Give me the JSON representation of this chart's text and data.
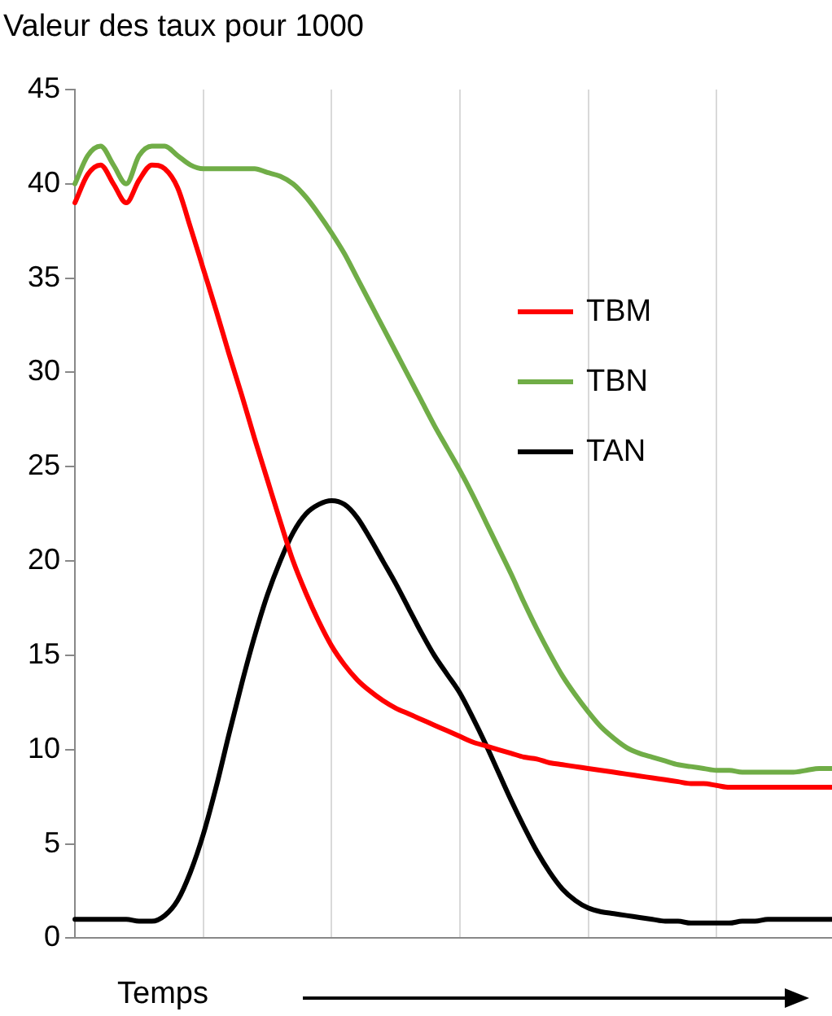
{
  "chart_data": {
    "type": "line",
    "ylabel": "Valeur des taux pour 1000",
    "xlabel": "Temps",
    "categories": [
      null,
      null,
      null,
      null,
      null,
      null,
      null,
      null,
      null,
      null,
      null,
      null,
      null,
      null,
      null,
      null,
      null,
      null,
      null,
      null,
      null,
      null,
      null,
      null,
      null,
      null,
      null,
      null,
      null,
      null,
      null,
      null,
      null,
      null,
      null,
      null,
      null,
      null,
      null,
      null,
      null,
      null,
      null,
      null,
      null,
      null,
      null,
      null,
      null,
      null,
      null,
      null,
      null,
      null,
      null,
      null,
      null,
      null,
      null,
      null
    ],
    "series": [
      {
        "name": "TBM",
        "color": "#ff0000",
        "values": [
          39,
          40.5,
          41,
          40,
          39,
          40.2,
          41,
          40.8,
          39.8,
          37.7,
          35.5,
          33.3,
          31,
          28.8,
          26.5,
          24.3,
          22.1,
          20,
          18.3,
          16.8,
          15.5,
          14.5,
          13.7,
          13.1,
          12.6,
          12.2,
          11.9,
          11.6,
          11.3,
          11,
          10.7,
          10.4,
          10.2,
          10,
          9.8,
          9.6,
          9.5,
          9.3,
          9.2,
          9.1,
          9,
          8.9,
          8.8,
          8.7,
          8.6,
          8.5,
          8.4,
          8.3,
          8.2,
          8.2,
          8.1,
          8,
          8,
          8,
          8,
          8,
          8,
          8,
          8,
          8
        ]
      },
      {
        "name": "TBN",
        "color": "#70ad47",
        "values": [
          40,
          41.5,
          42,
          41,
          40,
          41.5,
          42,
          42,
          41.5,
          41,
          40.8,
          40.8,
          40.8,
          40.8,
          40.8,
          40.6,
          40.4,
          40,
          39.3,
          38.4,
          37.4,
          36.3,
          35,
          33.7,
          32.4,
          31.1,
          29.8,
          28.5,
          27.2,
          26,
          24.8,
          23.5,
          22.1,
          20.7,
          19.3,
          17.8,
          16.4,
          15.1,
          13.9,
          12.9,
          12,
          11.2,
          10.6,
          10.1,
          9.8,
          9.6,
          9.4,
          9.2,
          9.1,
          9,
          8.9,
          8.9,
          8.8,
          8.8,
          8.8,
          8.8,
          8.8,
          8.9,
          9,
          9
        ]
      },
      {
        "name": "TAN",
        "color": "#000000",
        "values": [
          1,
          1,
          1,
          1,
          1,
          0.9,
          0.9,
          1.2,
          2,
          3.5,
          5.5,
          8,
          10.8,
          13.5,
          16,
          18.2,
          20,
          21.5,
          22.5,
          23,
          23.2,
          23,
          22.3,
          21.2,
          20,
          18.8,
          17.5,
          16.2,
          15,
          14,
          13,
          11.7,
          10.3,
          8.8,
          7.3,
          5.9,
          4.6,
          3.5,
          2.6,
          2,
          1.6,
          1.4,
          1.3,
          1.2,
          1.1,
          1,
          0.9,
          0.9,
          0.8,
          0.8,
          0.8,
          0.8,
          0.9,
          0.9,
          1,
          1,
          1,
          1,
          1,
          1
        ]
      }
    ],
    "ylim": [
      0,
      45
    ],
    "yticks": [
      0,
      5,
      10,
      15,
      20,
      25,
      30,
      35,
      40,
      45
    ],
    "grid": "x",
    "legend": "right",
    "tick_labels": "y",
    "marker": "none",
    "line_style": "solid"
  }
}
